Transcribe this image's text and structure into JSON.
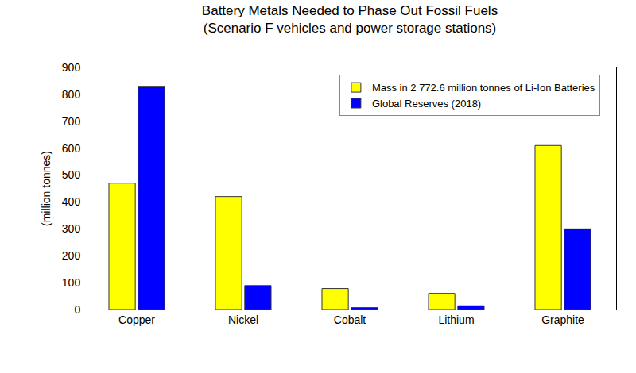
{
  "chart_data": {
    "type": "bar",
    "title": "Battery Metals Needed to Phase Out Fossil Fuels",
    "subtitle": "(Scenario F vehicles and power storage stations)",
    "y_label": "(million tonnes)",
    "categories": [
      "Copper",
      "Nickel",
      "Cobalt",
      "Lithium",
      "Graphite"
    ],
    "series": [
      {
        "name": "Mass in 2 772.6 million tonnes of Li-Ion Batteries",
        "color": "#ffff00",
        "values": [
          470,
          420,
          78,
          60,
          610
        ]
      },
      {
        "name": "Global Reserves (2018)",
        "color": "#0000ff",
        "values": [
          830,
          89,
          7,
          14,
          300
        ]
      }
    ],
    "ylim": [
      0,
      900
    ],
    "yticks": [
      0,
      100,
      200,
      300,
      400,
      500,
      600,
      700,
      800,
      900
    ],
    "grid": false,
    "legend": "top right"
  }
}
